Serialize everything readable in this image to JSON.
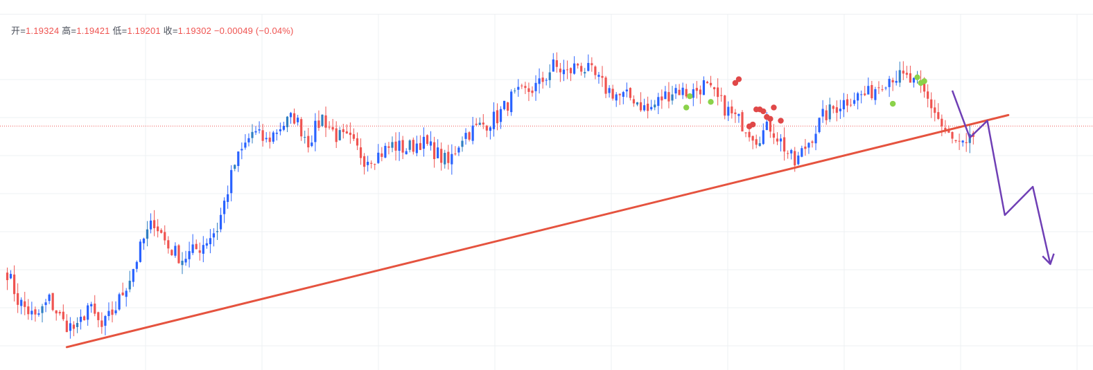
{
  "legend": {
    "open_label": "开=",
    "open_value": "1.19324",
    "high_label": "高=",
    "high_value": "1.19421",
    "low_label": "低=",
    "low_value": "1.19201",
    "close_label": "收=",
    "close_value": "1.19302",
    "change": "−0.00049",
    "change_pct": "(−0.04%)"
  },
  "colors": {
    "up": "#2962ff",
    "up_alt": "#2f7fc1",
    "down": "#ef5350",
    "trendline": "#e5533f",
    "projection": "#6f3fb5",
    "dot_green": "#8bd24a",
    "dot_red": "#e04848",
    "grid": "#eef0f3",
    "price_line": "#ef5350"
  },
  "chart_data": {
    "type": "candlestick",
    "instrument_hint": "forex",
    "current_price": 1.19302,
    "price_line_style": "dotted",
    "grid": true,
    "waypoints": [
      [
        0,
        1.1853
      ],
      [
        3,
        1.1838
      ],
      [
        8,
        1.1828
      ],
      [
        12,
        1.1838
      ],
      [
        16,
        1.1826
      ],
      [
        20,
        1.1822
      ],
      [
        23,
        1.1835
      ],
      [
        27,
        1.1823
      ],
      [
        31,
        1.1834
      ],
      [
        35,
        1.185
      ],
      [
        39,
        1.187
      ],
      [
        42,
        1.188
      ],
      [
        46,
        1.1866
      ],
      [
        50,
        1.186
      ],
      [
        55,
        1.1866
      ],
      [
        60,
        1.1876
      ],
      [
        65,
        1.191
      ],
      [
        70,
        1.1927
      ],
      [
        74,
        1.1922
      ],
      [
        78,
        1.193
      ],
      [
        82,
        1.1935
      ],
      [
        86,
        1.1922
      ],
      [
        90,
        1.1935
      ],
      [
        94,
        1.1925
      ],
      [
        98,
        1.1922
      ],
      [
        102,
        1.1913
      ],
      [
        106,
        1.1915
      ],
      [
        110,
        1.192
      ],
      [
        114,
        1.1918
      ],
      [
        118,
        1.1922
      ],
      [
        122,
        1.1917
      ],
      [
        126,
        1.191
      ],
      [
        130,
        1.1925
      ],
      [
        135,
        1.193
      ],
      [
        140,
        1.1935
      ],
      [
        144,
        1.1945
      ],
      [
        148,
        1.1948
      ],
      [
        152,
        1.1952
      ],
      [
        156,
        1.1962
      ],
      [
        160,
        1.1958
      ],
      [
        163,
        1.1963
      ],
      [
        167,
        1.1958
      ],
      [
        171,
        1.195
      ],
      [
        175,
        1.1946
      ],
      [
        179,
        1.1945
      ],
      [
        183,
        1.1938
      ],
      [
        187,
        1.1945
      ],
      [
        191,
        1.195
      ],
      [
        195,
        1.1947
      ],
      [
        199,
        1.1952
      ],
      [
        203,
        1.1944
      ],
      [
        207,
        1.1936
      ],
      [
        211,
        1.193
      ],
      [
        214,
        1.1924
      ],
      [
        218,
        1.193
      ],
      [
        221,
        1.1922
      ],
      [
        225,
        1.191
      ],
      [
        229,
        1.1922
      ],
      [
        233,
        1.1935
      ],
      [
        238,
        1.1942
      ],
      [
        242,
        1.1946
      ],
      [
        246,
        1.1947
      ],
      [
        250,
        1.1954
      ],
      [
        253,
        1.1957
      ],
      [
        257,
        1.1955
      ],
      [
        261,
        1.195
      ],
      [
        265,
        1.1938
      ],
      [
        267,
        1.193
      ],
      [
        270,
        1.1922
      ],
      [
        272,
        1.192
      ],
      [
        274,
        1.1918
      ],
      [
        276,
        1.1925
      ]
    ],
    "trendline": {
      "from": {
        "index": 17,
        "price": 1.1813
      },
      "to": {
        "index": 286,
        "price": 1.1936
      }
    },
    "projection_path": [
      {
        "index": 270,
        "price": 1.1949
      },
      {
        "index": 275,
        "price": 1.1924
      },
      {
        "index": 280,
        "price": 1.1933
      },
      {
        "index": 285,
        "price": 1.1883
      },
      {
        "index": 293,
        "price": 1.1898
      },
      {
        "index": 298,
        "price": 1.1857
      }
    ],
    "signals": [
      {
        "kind": "green",
        "index": 194,
        "price": 1.194
      },
      {
        "kind": "green",
        "index": 195,
        "price": 1.1946
      },
      {
        "kind": "green",
        "index": 201,
        "price": 1.1943
      },
      {
        "kind": "red",
        "index": 208,
        "price": 1.1953
      },
      {
        "kind": "red",
        "index": 209,
        "price": 1.1955
      },
      {
        "kind": "red",
        "index": 212,
        "price": 1.193
      },
      {
        "kind": "red",
        "index": 213,
        "price": 1.1931
      },
      {
        "kind": "red",
        "index": 214,
        "price": 1.1939
      },
      {
        "kind": "red",
        "index": 215,
        "price": 1.1939
      },
      {
        "kind": "red",
        "index": 216,
        "price": 1.1938
      },
      {
        "kind": "red",
        "index": 217,
        "price": 1.1935
      },
      {
        "kind": "red",
        "index": 218,
        "price": 1.1934
      },
      {
        "kind": "red",
        "index": 219,
        "price": 1.194
      },
      {
        "kind": "red",
        "index": 221,
        "price": 1.1933
      },
      {
        "kind": "green",
        "index": 253,
        "price": 1.1942
      },
      {
        "kind": "green",
        "index": 260,
        "price": 1.1956
      },
      {
        "kind": "green",
        "index": 261,
        "price": 1.1953
      },
      {
        "kind": "green",
        "index": 262,
        "price": 1.1954
      }
    ]
  }
}
